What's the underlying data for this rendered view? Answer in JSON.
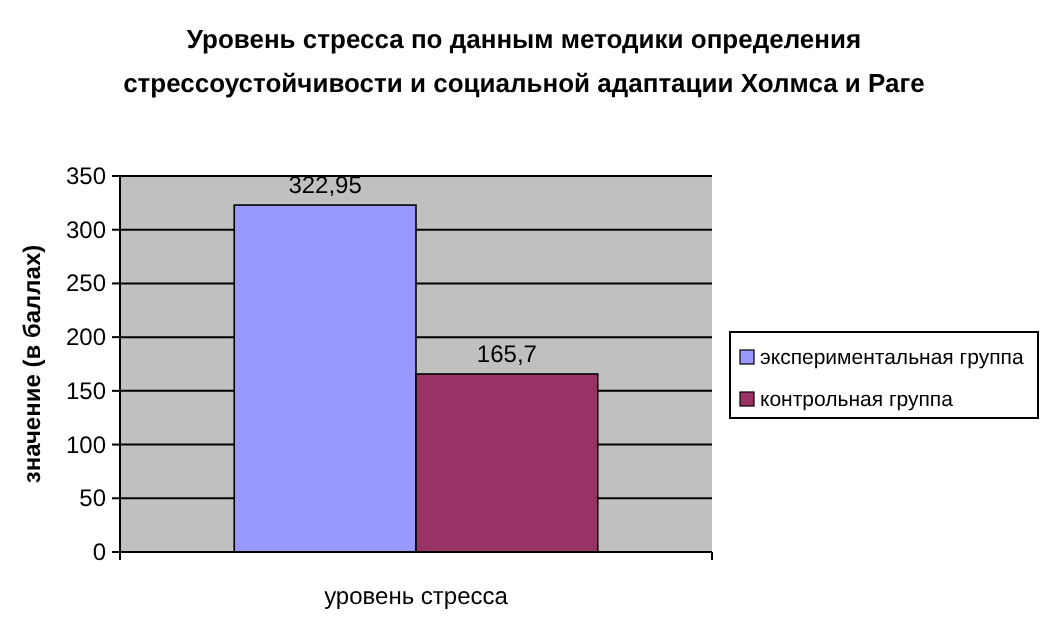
{
  "chart_data": {
    "type": "bar",
    "title": "Уровень стресса по данным методики определения стрессоустойчивости и социальной адаптации Холмса и Раге",
    "ylabel": "значение (в баллах)",
    "categories": [
      "уровень стресса"
    ],
    "series": [
      {
        "name": "экспериментальная группа",
        "color": "#9999ff",
        "values": [
          322.95
        ],
        "value_labels": [
          "322,95"
        ]
      },
      {
        "name": "контрольная группа",
        "color": "#993366",
        "values": [
          165.7
        ],
        "value_labels": [
          "165,7"
        ]
      }
    ],
    "ylim": [
      0,
      350
    ],
    "yticks": [
      0,
      50,
      100,
      150,
      200,
      250,
      300,
      350
    ],
    "grid": "y",
    "legend": "right"
  }
}
